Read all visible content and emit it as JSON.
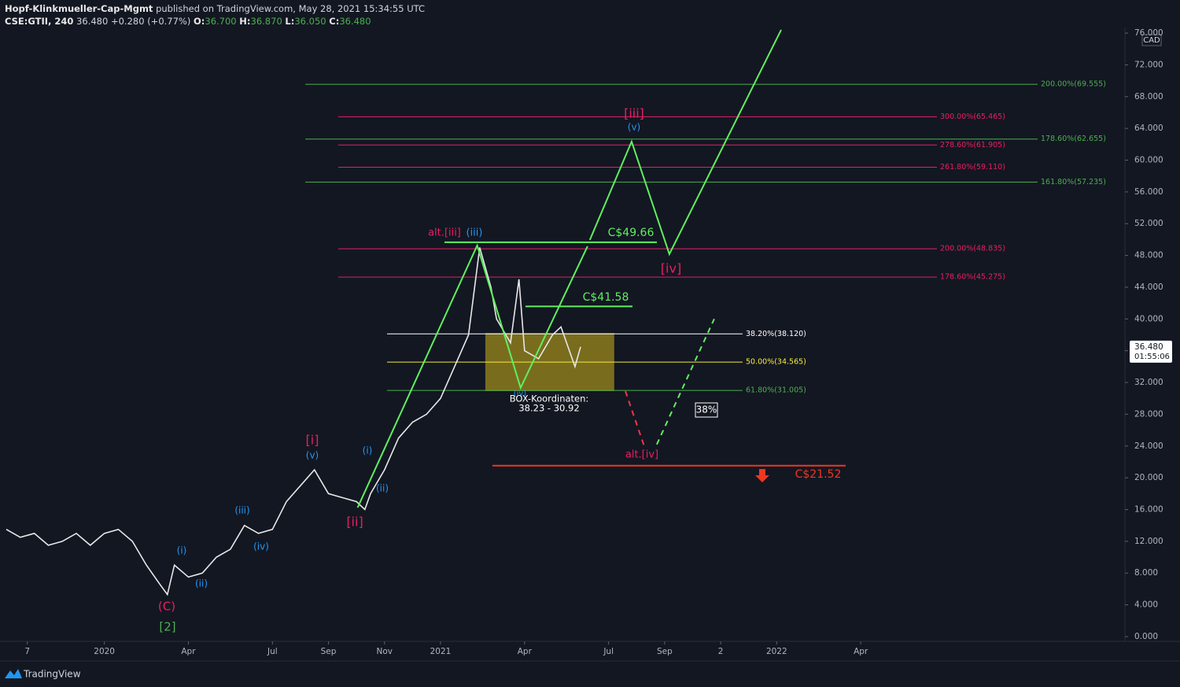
{
  "header": {
    "author": "Hopf-Klinkmueller-Cap-Mgmt",
    "published": "published on TradingView.com, May 28, 2021 15:34:55 UTC",
    "symbol": "CSE:GTII, 240",
    "last": "36.480",
    "change": "+0.280 (+0.77%)",
    "o_label": "O:",
    "o": "36.700",
    "h_label": "H:",
    "h": "36.870",
    "l_label": "L:",
    "l": "36.050",
    "c_label": "C:",
    "c": "36.480"
  },
  "footer": {
    "brand": "TradingView"
  },
  "chart_data": {
    "type": "line",
    "color": "#e8e8e8",
    "currency": "CAD",
    "x": [
      -3.5,
      -3,
      -2.5,
      -2,
      -1.5,
      -1,
      -0.5,
      0,
      0.5,
      1,
      1.5,
      2,
      2.25,
      2.5,
      3,
      3.5,
      4,
      4.5,
      5,
      5.5,
      6,
      6.5,
      7,
      7.5,
      8,
      8.5,
      9,
      9.3,
      9.5,
      10,
      10.5,
      11,
      11.5,
      12,
      12.5,
      13,
      13.4,
      13.8,
      14,
      14.5,
      14.8,
      15,
      15.5,
      16,
      16.3,
      16.8,
      17
    ],
    "values": [
      13.5,
      12.5,
      13,
      11.5,
      12,
      13,
      11.5,
      13,
      13.5,
      12,
      9,
      6.5,
      5.3,
      9,
      7.5,
      8,
      10,
      11,
      14,
      13,
      13.5,
      17,
      19,
      21,
      18,
      17.5,
      17,
      16,
      18,
      21,
      25,
      27,
      28,
      30,
      34,
      38,
      49,
      44,
      40,
      37,
      45,
      36,
      35,
      38,
      39,
      34,
      36.48
    ],
    "xlim": [
      -3.5,
      36.15
    ],
    "ylim": [
      -0.6,
      76.7
    ],
    "xticks": [
      {
        "value": -2.75,
        "label": "7"
      },
      {
        "value": 0,
        "label": "2020"
      },
      {
        "value": 3,
        "label": "Apr"
      },
      {
        "value": 6,
        "label": "Jul"
      },
      {
        "value": 8,
        "label": "Sep"
      },
      {
        "value": 10,
        "label": "Nov"
      },
      {
        "value": 12,
        "label": "2021"
      },
      {
        "value": 15,
        "label": "Apr"
      },
      {
        "value": 18,
        "label": "Jul"
      },
      {
        "value": 20,
        "label": "Sep"
      },
      {
        "value": 22,
        "label": "2"
      },
      {
        "value": 24,
        "label": "2022"
      },
      {
        "value": 27,
        "label": "Apr"
      }
    ],
    "yticks": [
      {
        "value": 0,
        "label": "0.000"
      },
      {
        "value": 4,
        "label": "4.000"
      },
      {
        "value": 8,
        "label": "8.000"
      },
      {
        "value": 12,
        "label": "12.000"
      },
      {
        "value": 16,
        "label": "16.000"
      },
      {
        "value": 20,
        "label": "20.000"
      },
      {
        "value": 24,
        "label": "24.000"
      },
      {
        "value": 28,
        "label": "28.000"
      },
      {
        "value": 32,
        "label": "32.000"
      },
      {
        "value": 36,
        "label": "36.000"
      },
      {
        "value": 40,
        "label": "40.000"
      },
      {
        "value": 44,
        "label": "44.000"
      },
      {
        "value": 48,
        "label": "48.000"
      },
      {
        "value": 52,
        "label": "52.000"
      },
      {
        "value": 56,
        "label": "56.000"
      },
      {
        "value": 60,
        "label": "60.000"
      },
      {
        "value": 64,
        "label": "64.000"
      },
      {
        "value": 68,
        "label": "68.000"
      },
      {
        "value": 72,
        "label": "72.000"
      },
      {
        "value": 76,
        "label": "76.000"
      }
    ],
    "last_price": {
      "value": 36.48,
      "label": "36.480"
    },
    "countdown": "01:55:06",
    "fib_green": [
      {
        "label": "200.00%(69.555)",
        "value": 69.555,
        "color": "#4caf50"
      },
      {
        "label": "178.60%(62.655)",
        "value": 62.655,
        "color": "#4caf50"
      },
      {
        "label": "161.80%(57.235)",
        "value": 57.235,
        "color": "#4caf50"
      }
    ],
    "fib_pink": [
      {
        "label": "300.00%(65.465)",
        "value": 65.465,
        "color": "#e91e63"
      },
      {
        "label": "278.60%(61.905)",
        "value": 61.905,
        "color": "#e91e63"
      },
      {
        "label": "261.80%(59.110)",
        "value": 59.11,
        "color": "#e91e63"
      },
      {
        "label": "200.00%(48.835)",
        "value": 48.835,
        "color": "#e91e63"
      },
      {
        "label": "178.60%(45.275)",
        "value": 45.275,
        "color": "#e91e63"
      }
    ],
    "box_levels": [
      {
        "label": "38.20%(38.120)",
        "value": 38.12,
        "color": "#ffffff"
      },
      {
        "label": "50.00%(34.565)",
        "value": 34.565,
        "color": "#f5eb3b"
      },
      {
        "label": "61.80%(31.005)",
        "value": 31.005,
        "color": "#4caf50"
      }
    ],
    "box": {
      "top": 38.23,
      "bottom": 30.92,
      "x": [
        13.6,
        18.2
      ],
      "color": "#8c7d1c",
      "title": "BOX-Koordinaten:",
      "range": "38.23 - 30.92"
    },
    "targets": [
      {
        "label": "C$49.66",
        "value": 49.66,
        "color": "#5ff05f"
      },
      {
        "label": "C$41.58",
        "value": 41.58,
        "color": "#5ff05f"
      },
      {
        "label": "C$21.52",
        "value": 21.52,
        "color": "#f23620"
      }
    ],
    "projections": [
      {
        "color": "#5ff05f",
        "dashed": false,
        "x": [
          9.04,
          13.31,
          14.86,
          17.25
        ],
        "y": [
          16.25,
          49.26,
          31.32,
          49.16
        ]
      },
      {
        "color": "#5ff05f",
        "dashed": false,
        "x": [
          17.33,
          18.82,
          20.17,
          24.16
        ],
        "y": [
          49.95,
          62.34,
          48.17,
          76.41
        ]
      },
      {
        "color": "#f23645",
        "dashed": true,
        "x": [
          18.6,
          19.3
        ],
        "y": [
          30.9,
          23.7
        ]
      },
      {
        "color": "#5ff05f",
        "dashed": true,
        "x": [
          19.72,
          21.77
        ],
        "y": [
          24.2,
          40.0
        ]
      }
    ],
    "annotations": [
      {
        "text": "[iii]",
        "color": "#e91e63"
      },
      {
        "text": "(v)",
        "color": "#2196f3"
      },
      {
        "text": "alt.[iii]",
        "color": "#e91e63"
      },
      {
        "text": "(iii)",
        "color": "#2196f3"
      },
      {
        "text": "[iv]",
        "color": "#e91e63"
      },
      {
        "text": "[i]",
        "color": "#e91e63"
      },
      {
        "text": "(v)",
        "color": "#2196f3"
      },
      {
        "text": "(i)",
        "color": "#2196f3"
      },
      {
        "text": "(ii)",
        "color": "#2196f3"
      },
      {
        "text": "[ii]",
        "color": "#e91e63"
      },
      {
        "text": "(iii)",
        "color": "#2196f3"
      },
      {
        "text": "(iv)",
        "color": "#2196f3"
      },
      {
        "text": "(i)",
        "color": "#2196f3"
      },
      {
        "text": "(ii)",
        "color": "#2196f3"
      },
      {
        "text": "(C)",
        "color": "#e91e63"
      },
      {
        "text": "[2]",
        "color": "#4caf50"
      },
      {
        "text": "(iv)",
        "color": "#2196f3"
      },
      {
        "text": "alt.[iv]",
        "color": "#e91e63"
      },
      {
        "text": "38%",
        "color": "#ffffff"
      }
    ]
  }
}
